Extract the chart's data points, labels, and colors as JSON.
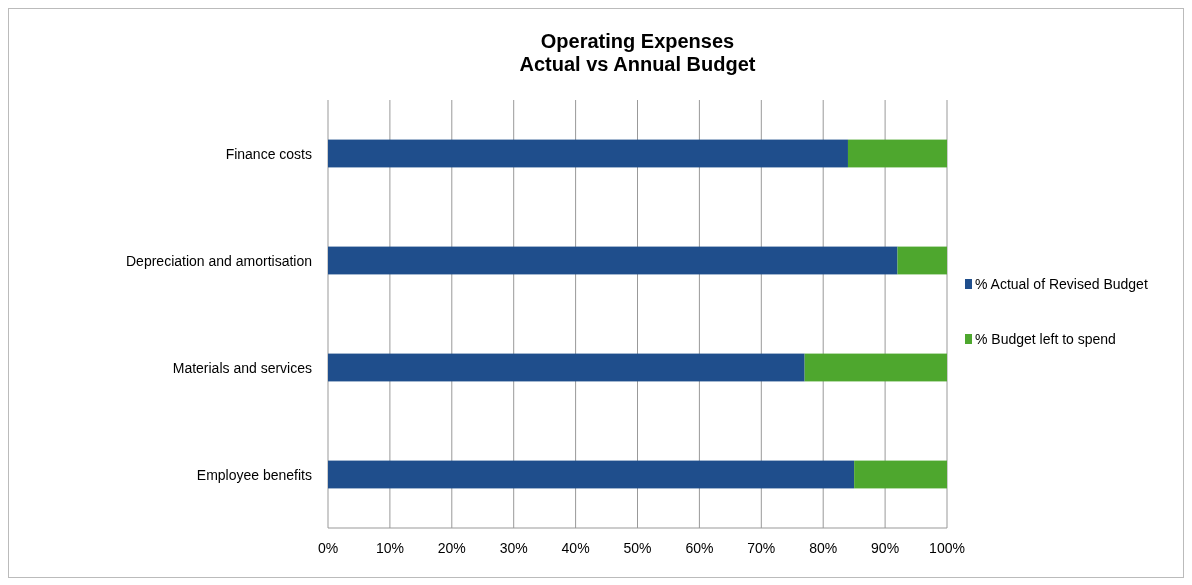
{
  "chart_data": {
    "type": "bar",
    "orientation": "horizontal",
    "stacked": true,
    "title": "Operating Expenses\nActual vs Annual Budget",
    "categories": [
      "Finance costs",
      "Depreciation and amortisation",
      "Materials and services",
      "Employee benefits"
    ],
    "series": [
      {
        "name": "% Actual of Revised Budget",
        "color": "#1f4e8c",
        "values": [
          84,
          92,
          77,
          85
        ]
      },
      {
        "name": "% Budget left to spend",
        "color": "#4ea72e",
        "values": [
          16,
          8,
          23,
          15
        ]
      }
    ],
    "xlim": [
      0,
      100
    ],
    "xticks": [
      {
        "value": 0,
        "label": "0%"
      },
      {
        "value": 10,
        "label": "10%"
      },
      {
        "value": 20,
        "label": "20%"
      },
      {
        "value": 30,
        "label": "30%"
      },
      {
        "value": 40,
        "label": "40%"
      },
      {
        "value": 50,
        "label": "50%"
      },
      {
        "value": 60,
        "label": "60%"
      },
      {
        "value": 70,
        "label": "70%"
      },
      {
        "value": 80,
        "label": "80%"
      },
      {
        "value": 90,
        "label": "90%"
      },
      {
        "value": 100,
        "label": "100%"
      }
    ],
    "grid": "x",
    "legend": "right"
  }
}
